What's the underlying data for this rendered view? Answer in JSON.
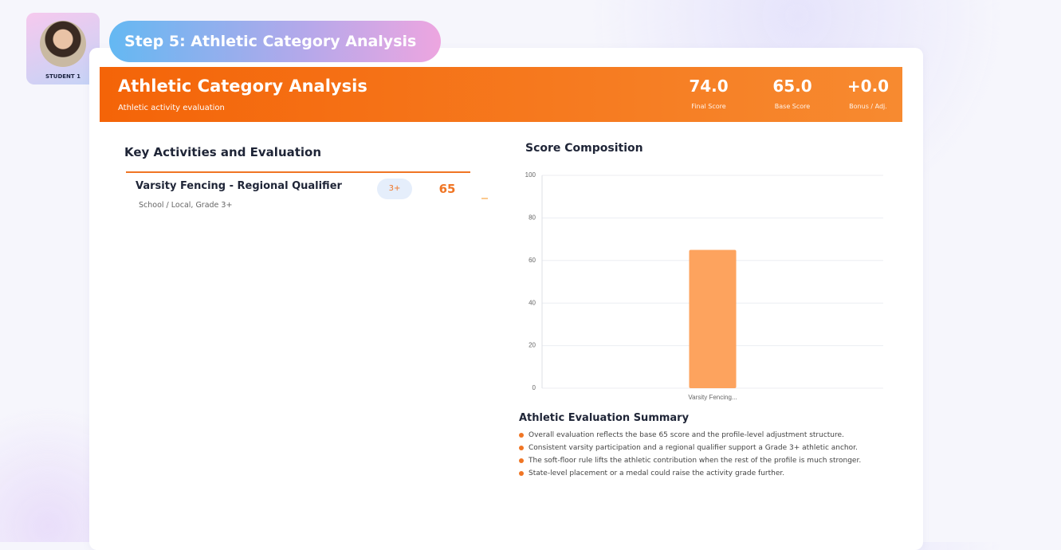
{
  "student": {
    "label": "STUDENT 1"
  },
  "step": {
    "title": "Step 5: Athletic Category Analysis"
  },
  "header": {
    "title": "Athletic Category Analysis",
    "subtitle": "Athletic activity evaluation",
    "stats": [
      {
        "value": "74.0",
        "label": "Final Score"
      },
      {
        "value": "65.0",
        "label": "Base Score"
      },
      {
        "value": "+0.0",
        "label": "Bonus / Adj."
      }
    ]
  },
  "activities": {
    "title": "Key Activities and Evaluation",
    "items": [
      {
        "name": "Varsity Fencing - Regional Qualifier",
        "grade": "3+",
        "score": 65,
        "detail": "School / Local, Grade 3+"
      }
    ]
  },
  "chart_data": {
    "type": "bar",
    "title": "Score Composition",
    "categories": [
      "Varsity Fencing..."
    ],
    "values": [
      65
    ],
    "color": "#fda35e",
    "ylim": [
      0,
      100
    ],
    "yticks": [
      0,
      20,
      40,
      60,
      80,
      100
    ],
    "grid": true
  },
  "summary": {
    "title": "Athletic Evaluation Summary",
    "items": [
      "Overall evaluation reflects the base 65 score and the profile-level adjustment structure.",
      "Consistent varsity participation and a regional qualifier support a Grade 3+ athletic anchor.",
      "The soft-floor rule lifts the athletic contribution when the rest of the profile is much stronger.",
      "State-level placement or a medal could raise the activity grade further."
    ]
  }
}
